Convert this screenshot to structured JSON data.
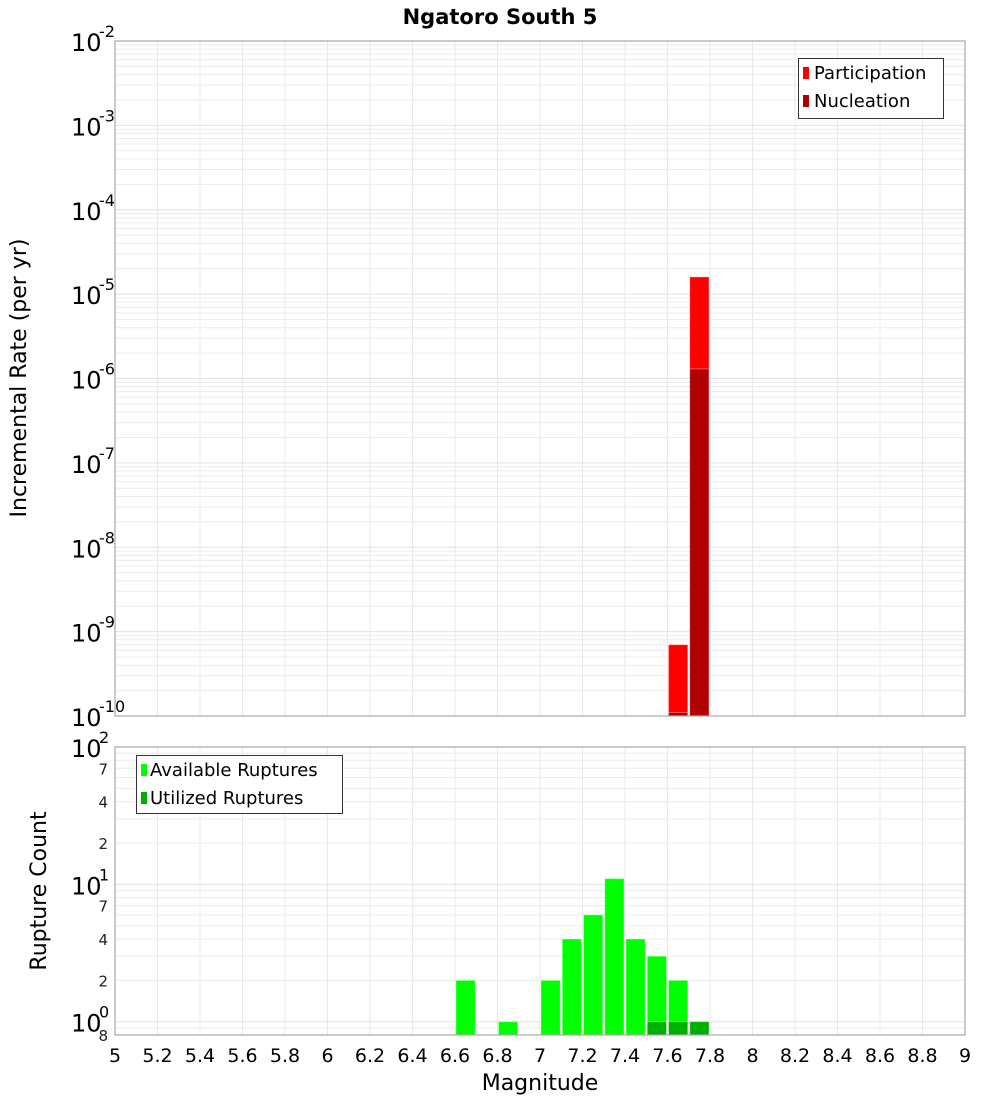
{
  "chart_data": [
    {
      "id": "rates",
      "type": "bar",
      "title": "Ngatoro South 5",
      "xlabel": "",
      "ylabel": "Incremental Rate (per yr)",
      "yscale": "log",
      "ylim": [
        1e-10,
        0.01
      ],
      "xlim": [
        5,
        9
      ],
      "bin_width": 0.1,
      "grid": true,
      "legend_position": "top-right",
      "y_tick_decades": [
        -2,
        -3,
        -4,
        -5,
        -6,
        -7,
        -8,
        -9,
        -10
      ],
      "series": [
        {
          "name": "Participation",
          "color": "#FF0000",
          "x": [
            7.65,
            7.75
          ],
          "values": [
            7e-10,
            1.6e-05
          ]
        },
        {
          "name": "Nucleation",
          "color": "#B00000",
          "x": [
            7.65,
            7.75
          ],
          "values": [
            1.1e-10,
            1.3e-06
          ]
        }
      ]
    },
    {
      "id": "counts",
      "type": "bar",
      "title": "",
      "xlabel": "Magnitude",
      "ylabel": "Rupture Count",
      "yscale": "log",
      "ylim": [
        0.8,
        100
      ],
      "xlim": [
        5,
        9
      ],
      "bin_width": 0.1,
      "grid": true,
      "legend_position": "top-left",
      "y_tick_decades": [
        2,
        1,
        0
      ],
      "y_minor_labels": [
        {
          "value": 70,
          "label": "7"
        },
        {
          "value": 40,
          "label": "4"
        },
        {
          "value": 20,
          "label": "2"
        },
        {
          "value": 7,
          "label": "7"
        },
        {
          "value": 4,
          "label": "4"
        },
        {
          "value": 2,
          "label": "2"
        },
        {
          "value": 0.8,
          "label": "8"
        }
      ],
      "x_ticks": [
        "5",
        "5.2",
        "5.4",
        "5.6",
        "5.8",
        "6",
        "6.2",
        "6.4",
        "6.6",
        "6.8",
        "7",
        "7.2",
        "7.4",
        "7.6",
        "7.8",
        "8",
        "8.2",
        "8.4",
        "8.6",
        "8.8",
        "9"
      ],
      "series": [
        {
          "name": "Available Ruptures",
          "color": "#00FF00",
          "x": [
            6.65,
            6.85,
            7.05,
            7.15,
            7.25,
            7.35,
            7.45,
            7.55,
            7.65
          ],
          "values": [
            2,
            1,
            2,
            4,
            6,
            11,
            4,
            3,
            2
          ]
        },
        {
          "name": "Utilized Ruptures",
          "color": "#00B000",
          "x": [
            7.55,
            7.65,
            7.75
          ],
          "values": [
            1,
            1,
            1
          ]
        }
      ]
    }
  ],
  "labels": {
    "title": "Ngatoro South 5",
    "top_ylabel": "Incremental Rate (per yr)",
    "bottom_ylabel": "Rupture Count",
    "xlabel": "Magnitude",
    "legend_top": [
      "Participation",
      "Nucleation"
    ],
    "legend_bottom": [
      "Available Ruptures",
      "Utilized Ruptures"
    ]
  }
}
